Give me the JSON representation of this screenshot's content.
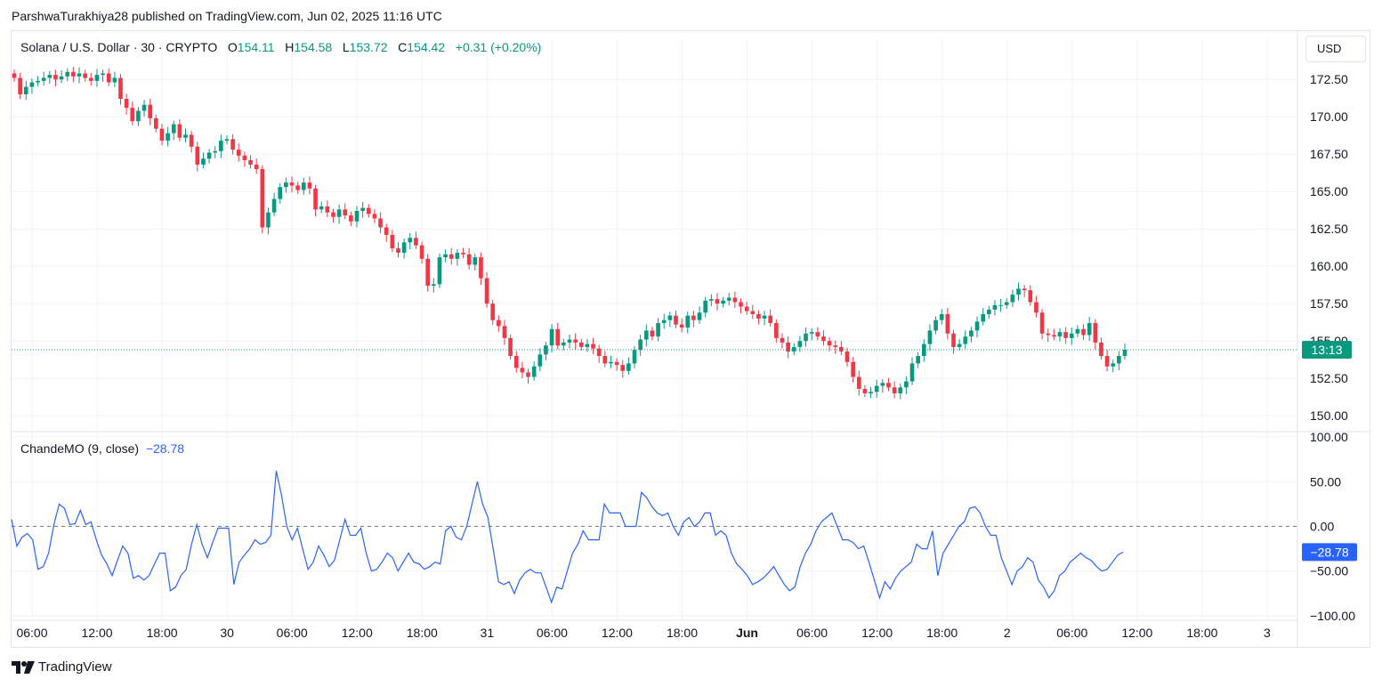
{
  "header": {
    "published_line": "ParshwaTurakhiya28 published on TradingView.com, Jun 02, 2025 11:16 UTC"
  },
  "brand": {
    "name": "TradingView"
  },
  "currency_button": "USD",
  "legend": {
    "symbol": "Solana / U.S. Dollar · 30 · CRYPTO",
    "o_label": "O",
    "o_value": "154.11",
    "h_label": "H",
    "h_value": "154.58",
    "l_label": "L",
    "l_value": "153.72",
    "c_label": "C",
    "c_value": "154.42",
    "change": "+0.31 (+0.20%)"
  },
  "indicator_legend": {
    "name": "ChandeMO (9, close)",
    "value": "−28.78"
  },
  "colors": {
    "up": "#089981",
    "down": "#f23645",
    "indicator": "#2962ff",
    "grid": "#f0f3fa"
  },
  "chart_data": [
    {
      "type": "candlestick",
      "title": "Solana / U.S. Dollar · 30 · CRYPTO",
      "ylim": [
        149,
        174
      ],
      "y_ticks": [
        "150.00",
        "152.50",
        "155.00",
        "157.50",
        "160.00",
        "162.50",
        "165.00",
        "167.50",
        "170.00",
        "172.50"
      ],
      "x_ticks": [
        "06:00",
        "12:00",
        "18:00",
        "30",
        "06:00",
        "12:00",
        "18:00",
        "31",
        "06:00",
        "12:00",
        "18:00",
        "Jun",
        "06:00",
        "12:00",
        "18:00",
        "2",
        "06:00",
        "12:00",
        "18:00",
        "3"
      ],
      "last_price_label": "13:13",
      "last_price": 154.42,
      "close_path_description": "approx closes sampled per 30-minute bar",
      "closes": [
        172.6,
        171.5,
        172.0,
        172.3,
        172.4,
        172.6,
        172.8,
        172.5,
        172.7,
        173.0,
        172.7,
        172.9,
        172.6,
        172.4,
        172.8,
        172.9,
        172.3,
        172.6,
        171.2,
        170.6,
        169.7,
        170.4,
        170.8,
        169.9,
        169.2,
        168.4,
        168.9,
        169.5,
        168.6,
        168.8,
        168.0,
        166.8,
        167.2,
        167.6,
        167.7,
        168.4,
        168.5,
        167.8,
        167.4,
        167.1,
        166.8,
        166.5,
        162.6,
        163.6,
        164.5,
        165.3,
        165.6,
        165.4,
        165.1,
        165.6,
        165.2,
        163.8,
        164.0,
        163.6,
        163.3,
        163.8,
        163.4,
        163.0,
        163.7,
        163.9,
        163.5,
        163.2,
        162.6,
        162.1,
        161.2,
        160.9,
        161.6,
        161.9,
        161.4,
        160.5,
        158.7,
        158.8,
        160.6,
        160.8,
        160.5,
        160.9,
        160.8,
        160.1,
        160.6,
        159.2,
        157.5,
        156.4,
        156.0,
        155.2,
        154.0,
        153.2,
        152.9,
        152.6,
        153.3,
        154.1,
        154.7,
        155.8,
        154.7,
        154.9,
        155.1,
        154.9,
        154.6,
        154.8,
        154.5,
        154.0,
        153.5,
        153.6,
        153.4,
        153.0,
        153.5,
        154.4,
        155.1,
        155.7,
        155.3,
        156.2,
        156.4,
        156.7,
        156.1,
        155.9,
        156.7,
        156.4,
        156.9,
        157.7,
        157.8,
        157.5,
        157.7,
        157.9,
        157.6,
        157.3,
        157.0,
        156.8,
        156.5,
        156.7,
        156.2,
        155.2,
        154.9,
        154.3,
        154.6,
        155.0,
        155.5,
        155.6,
        155.3,
        155.0,
        154.7,
        154.6,
        154.3,
        153.6,
        152.6,
        151.8,
        151.5,
        151.6,
        152.0,
        152.2,
        151.9,
        151.5,
        151.9,
        152.3,
        153.5,
        154.0,
        154.8,
        155.7,
        156.4,
        156.8,
        155.5,
        154.6,
        154.8,
        155.3,
        155.7,
        156.3,
        156.8,
        157.1,
        157.4,
        157.4,
        157.6,
        158.1,
        158.5,
        158.4,
        157.6,
        156.9,
        155.5,
        155.4,
        155.3,
        155.6,
        155.2,
        155.5,
        155.8,
        155.4,
        156.2,
        154.9,
        154.0,
        153.3,
        153.5,
        154.0,
        154.42
      ],
      "series": [
        {
          "name": "SOLUSD",
          "values": "see closes"
        }
      ]
    },
    {
      "type": "line",
      "title": "ChandeMO (9, close)",
      "ylim": [
        -105,
        105
      ],
      "y_ticks": [
        "100.00",
        "50.00",
        "0.00",
        "−50.00",
        "−100.00"
      ],
      "zero_line": 0.0,
      "last_value_label": "−28.78",
      "series": [
        {
          "name": "ChandeMO (9, close)",
          "values": [
            8,
            -22,
            -12,
            -8,
            -15,
            -48,
            -45,
            -30,
            2,
            25,
            20,
            2,
            3,
            18,
            2,
            5,
            -15,
            -32,
            -42,
            -55,
            -38,
            -22,
            -30,
            -58,
            -55,
            -60,
            -55,
            -42,
            -30,
            -30,
            -72,
            -68,
            -55,
            -48,
            -20,
            2,
            -20,
            -35,
            -18,
            -2,
            -2,
            -2,
            -65,
            -40,
            -32,
            -25,
            -15,
            -20,
            -18,
            -10,
            62,
            35,
            0,
            -15,
            -2,
            -25,
            -48,
            -40,
            -22,
            -32,
            -45,
            -38,
            -15,
            8,
            -10,
            -10,
            -2,
            -30,
            -50,
            -48,
            -40,
            -30,
            -35,
            -50,
            -40,
            -30,
            -40,
            -42,
            -48,
            -45,
            -40,
            -42,
            -5,
            0,
            -12,
            -15,
            0,
            25,
            50,
            25,
            10,
            -25,
            -62,
            -65,
            -62,
            -75,
            -60,
            -52,
            -48,
            -52,
            -52,
            -68,
            -85,
            -68,
            -70,
            -50,
            -30,
            -20,
            -5,
            -15,
            -15,
            -15,
            25,
            15,
            15,
            15,
            0,
            0,
            0,
            38,
            32,
            22,
            15,
            12,
            15,
            0,
            -10,
            5,
            10,
            0,
            5,
            15,
            15,
            -10,
            -5,
            -10,
            -30,
            -42,
            -48,
            -55,
            -65,
            -62,
            -58,
            -52,
            -45,
            -55,
            -65,
            -72,
            -68,
            -45,
            -30,
            -20,
            -5,
            5,
            10,
            15,
            0,
            -15,
            -15,
            -18,
            -25,
            -22,
            -40,
            -60,
            -80,
            -62,
            -70,
            -58,
            -50,
            -45,
            -40,
            -20,
            -25,
            -25,
            -5,
            -55,
            -30,
            -20,
            -10,
            0,
            5,
            20,
            22,
            15,
            0,
            -10,
            -10,
            -35,
            -50,
            -65,
            -50,
            -45,
            -35,
            -40,
            -60,
            -68,
            -80,
            -72,
            -55,
            -50,
            -40,
            -35,
            -30,
            -35,
            -38,
            -45,
            -50,
            -48,
            -40,
            -32,
            -28.78
          ]
        }
      ]
    }
  ]
}
